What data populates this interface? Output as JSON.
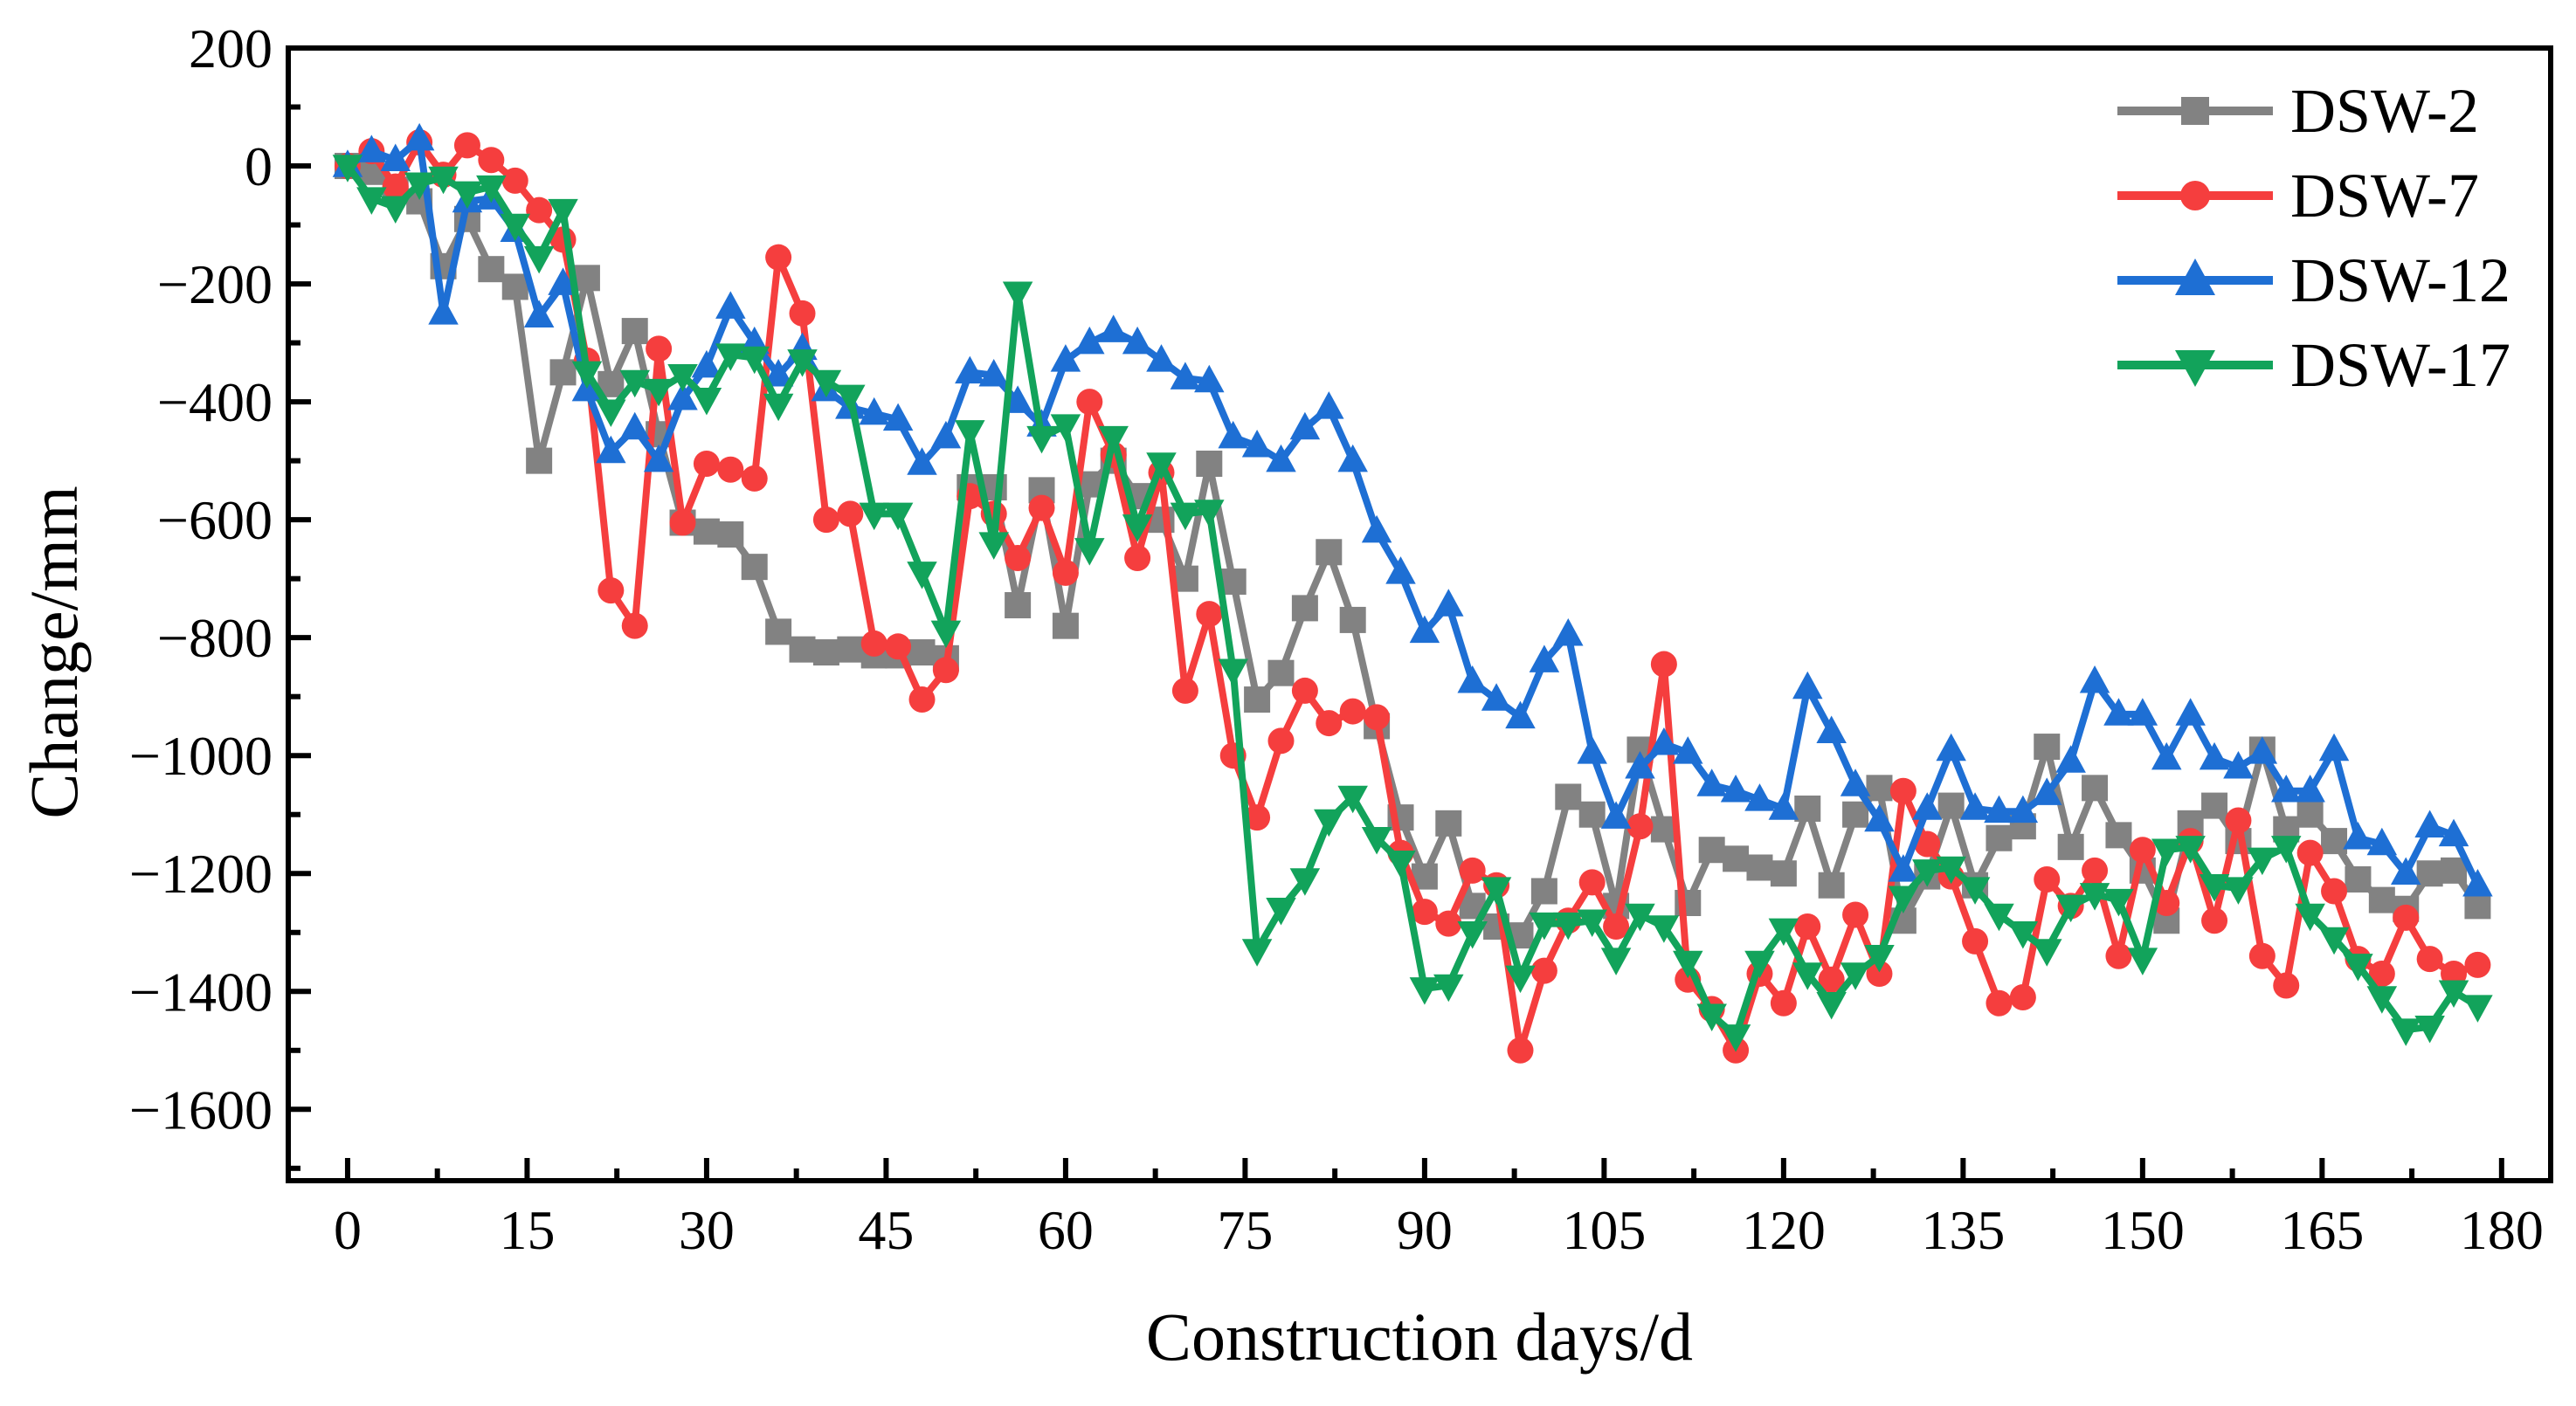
{
  "figure": {
    "background_color": "#ffffff"
  },
  "axes": {
    "x": {
      "title": "Construction days/d",
      "tick_values": [
        0,
        15,
        30,
        45,
        60,
        75,
        90,
        105,
        120,
        135,
        150,
        165,
        180
      ],
      "tick_labels": [
        "0",
        "15",
        "30",
        "45",
        "60",
        "75",
        "90",
        "105",
        "120",
        "135",
        "150",
        "165",
        "180"
      ],
      "minor_tick_values": [
        7.5,
        22.5,
        37.5,
        52.5,
        67.5,
        82.5,
        97.5,
        112.5,
        127.5,
        142.5,
        157.5,
        172.5
      ],
      "lim": [
        -4.96,
        184.1
      ]
    },
    "y": {
      "title": "Change/mm",
      "tick_values": [
        200,
        0,
        -200,
        -400,
        -600,
        -800,
        -1000,
        -1200,
        -1400,
        -1600
      ],
      "tick_labels": [
        "200",
        "0",
        "−200",
        "−400",
        "−600",
        "−800",
        "−1000",
        "−1200",
        "−1400",
        "−1600"
      ],
      "minor_tick_values": [
        100,
        -100,
        -300,
        -500,
        -700,
        -900,
        -1100,
        -1300,
        -1500,
        -1700
      ],
      "lim": [
        200,
        -1721
      ]
    }
  },
  "legend": {
    "items": [
      {
        "label": "DSW-2"
      },
      {
        "label": "DSW-7"
      },
      {
        "label": "DSW-12"
      },
      {
        "label": "DSW-17"
      }
    ]
  },
  "chart_data": {
    "type": "line",
    "title": "",
    "xlabel": "Construction days/d",
    "ylabel": "Change/mm",
    "xlim": [
      0,
      180
    ],
    "ylim": [
      -1721,
      200
    ],
    "grid": false,
    "legend_position": "top-right",
    "x": [
      0,
      2,
      4,
      6,
      8,
      10,
      12,
      14,
      16,
      18,
      20,
      22,
      24,
      26,
      28,
      30,
      32,
      34,
      36,
      38,
      40,
      42,
      44,
      46,
      48,
      50,
      52,
      54,
      56,
      58,
      60,
      62,
      64,
      66,
      68,
      70,
      72,
      74,
      76,
      78,
      80,
      82,
      84,
      86,
      88,
      90,
      92,
      94,
      96,
      98,
      100,
      102,
      104,
      106,
      108,
      110,
      112,
      114,
      116,
      118,
      120,
      122,
      124,
      126,
      128,
      130,
      132,
      134,
      136,
      138,
      140,
      142,
      144,
      146,
      148,
      150,
      152,
      154,
      156,
      158,
      160,
      162,
      164,
      166,
      168,
      170,
      172,
      174,
      176,
      178
    ],
    "series": [
      {
        "name": "DSW-2",
        "color": "#828282",
        "marker": "square",
        "values": [
          0,
          -10,
          -40,
          -60,
          -170,
          -90,
          -175,
          -205,
          -500,
          -350,
          -190,
          -370,
          -280,
          -455,
          -605,
          -620,
          -625,
          -680,
          -790,
          -820,
          -825,
          -820,
          -830,
          -830,
          -825,
          -835,
          -545,
          -545,
          -745,
          -550,
          -780,
          -540,
          -500,
          -560,
          -600,
          -700,
          -505,
          -705,
          -905,
          -860,
          -750,
          -655,
          -770,
          -950,
          -1105,
          -1205,
          -1115,
          -1255,
          -1290,
          -1305,
          -1230,
          -1070,
          -1100,
          -1255,
          -990,
          -1125,
          -1250,
          -1160,
          -1175,
          -1190,
          -1200,
          -1090,
          -1220,
          -1100,
          -1055,
          -1280,
          -1205,
          -1085,
          -1220,
          -1140,
          -1120,
          -985,
          -1155,
          -1055,
          -1135,
          -1195,
          -1280,
          -1115,
          -1085,
          -1145,
          -990,
          -1125,
          -1100,
          -1145,
          -1210,
          -1245,
          -1260,
          -1200,
          -1195,
          -1255
        ]
      },
      {
        "name": "DSW-7",
        "color": "#F53E3E",
        "marker": "circle",
        "values": [
          0,
          25,
          -35,
          40,
          -15,
          35,
          10,
          -25,
          -75,
          -125,
          -330,
          -720,
          -780,
          -310,
          -605,
          -505,
          -515,
          -530,
          -155,
          -250,
          -600,
          -590,
          -810,
          -815,
          -905,
          -855,
          -560,
          -590,
          -665,
          -580,
          -690,
          -400,
          -490,
          -665,
          -520,
          -890,
          -760,
          -1000,
          -1105,
          -975,
          -890,
          -945,
          -925,
          -935,
          -1165,
          -1265,
          -1285,
          -1195,
          -1220,
          -1500,
          -1365,
          -1280,
          -1215,
          -1290,
          -1120,
          -845,
          -1380,
          -1430,
          -1500,
          -1370,
          -1420,
          -1290,
          -1380,
          -1270,
          -1370,
          -1060,
          -1150,
          -1205,
          -1315,
          -1420,
          -1410,
          -1210,
          -1255,
          -1195,
          -1340,
          -1160,
          -1250,
          -1145,
          -1280,
          -1110,
          -1340,
          -1390,
          -1165,
          -1230,
          -1345,
          -1370,
          -1275,
          -1345,
          -1370,
          -1355
        ]
      },
      {
        "name": "DSW-12",
        "color": "#1E6FD4",
        "marker": "triangle-up",
        "values": [
          0,
          25,
          10,
          45,
          -250,
          -60,
          -55,
          -110,
          -255,
          -200,
          -380,
          -485,
          -445,
          -500,
          -395,
          -340,
          -240,
          -300,
          -355,
          -310,
          -380,
          -410,
          -420,
          -430,
          -505,
          -460,
          -350,
          -355,
          -400,
          -440,
          -330,
          -300,
          -280,
          -300,
          -330,
          -360,
          -365,
          -460,
          -475,
          -500,
          -445,
          -410,
          -500,
          -620,
          -690,
          -790,
          -745,
          -875,
          -905,
          -935,
          -840,
          -795,
          -995,
          -1105,
          -1020,
          -980,
          -995,
          -1050,
          -1060,
          -1075,
          -1090,
          -885,
          -960,
          -1050,
          -1110,
          -1195,
          -1090,
          -990,
          -1090,
          -1095,
          -1095,
          -1065,
          -1010,
          -875,
          -930,
          -930,
          -1005,
          -930,
          -1005,
          -1020,
          -995,
          -1060,
          -1060,
          -990,
          -1140,
          -1150,
          -1200,
          -1120,
          -1135,
          -1220
        ]
      },
      {
        "name": "DSW-17",
        "color": "#12A35B",
        "marker": "triangle-down",
        "values": [
          0,
          -55,
          -70,
          -30,
          -20,
          -45,
          -35,
          -100,
          -155,
          -75,
          -350,
          -415,
          -365,
          -380,
          -355,
          -395,
          -320,
          -325,
          -405,
          -330,
          -365,
          -390,
          -590,
          -590,
          -690,
          -790,
          -450,
          -640,
          -215,
          -460,
          -440,
          -650,
          -460,
          -610,
          -505,
          -590,
          -585,
          -855,
          -1330,
          -1260,
          -1210,
          -1110,
          -1070,
          -1140,
          -1180,
          -1395,
          -1390,
          -1300,
          -1225,
          -1375,
          -1285,
          -1285,
          -1280,
          -1345,
          -1270,
          -1290,
          -1350,
          -1440,
          -1475,
          -1350,
          -1295,
          -1370,
          -1420,
          -1370,
          -1340,
          -1240,
          -1195,
          -1190,
          -1225,
          -1270,
          -1300,
          -1330,
          -1255,
          -1235,
          -1245,
          -1345,
          -1160,
          -1155,
          -1220,
          -1225,
          -1175,
          -1155,
          -1270,
          -1310,
          -1355,
          -1410,
          -1465,
          -1460,
          -1400,
          -1425
        ]
      }
    ]
  },
  "plot_style": {
    "axis_color": "#000000",
    "axis_line_width": 6,
    "series_line_width": 8,
    "major_tick_length": 26,
    "minor_tick_length": 14,
    "tick_label_font_size": 64
  }
}
